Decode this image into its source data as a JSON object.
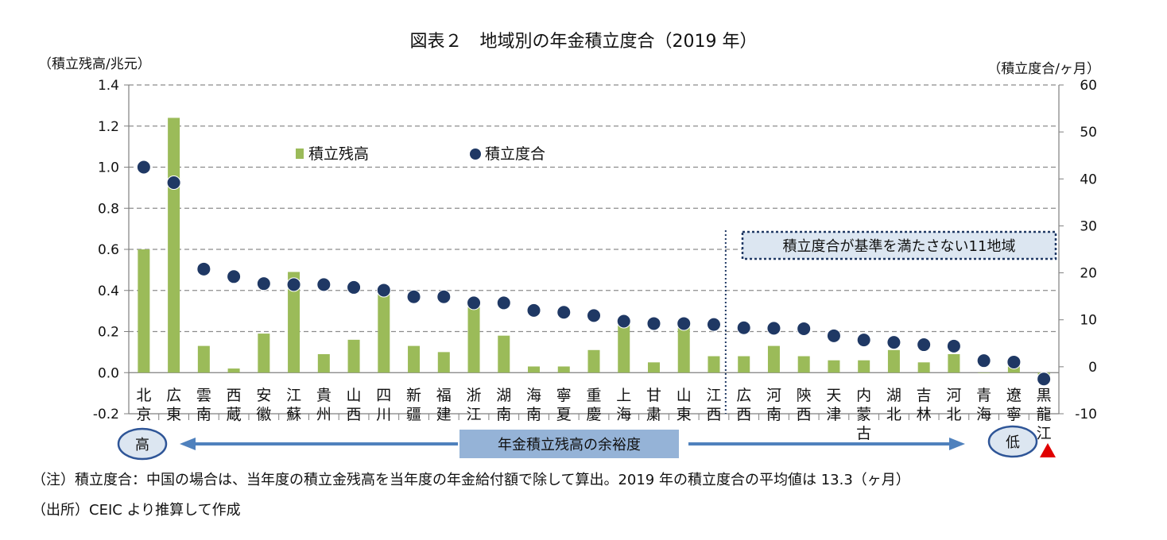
{
  "chart_data": {
    "type": "bar+scatter",
    "title": "図表２　地域別の年金積立度合（2019 年）",
    "ylabel_left": "（積立残高/兆元）",
    "ylabel_right": "（積立度合/ヶ月）",
    "ylim_left": [
      -0.2,
      1.4
    ],
    "yticks_left": [
      "1.4",
      "1.2",
      "1.0",
      "0.8",
      "0.6",
      "0.4",
      "0.2",
      "0.0",
      "-0.2"
    ],
    "yticks_left_values": [
      1.4,
      1.2,
      1.0,
      0.8,
      0.6,
      0.4,
      0.2,
      0.0,
      -0.2
    ],
    "ylim_right": [
      -10,
      60
    ],
    "yticks_right": [
      "60",
      "50",
      "40",
      "30",
      "20",
      "10",
      "0",
      "-10"
    ],
    "yticks_right_values": [
      60,
      50,
      40,
      30,
      20,
      10,
      0,
      -10
    ],
    "grid": "horizontal dashed",
    "legend": {
      "bar": "積立残高",
      "dot": "積立度合",
      "position": "top-left inside"
    },
    "categories": [
      [
        "北",
        "京"
      ],
      [
        "広",
        "東"
      ],
      [
        "雲",
        "南"
      ],
      [
        "西",
        "蔵"
      ],
      [
        "安",
        "徽"
      ],
      [
        "江",
        "蘇"
      ],
      [
        "貴",
        "州"
      ],
      [
        "山",
        "西"
      ],
      [
        "四",
        "川"
      ],
      [
        "新",
        "疆"
      ],
      [
        "福",
        "建"
      ],
      [
        "浙",
        "江"
      ],
      [
        "湖",
        "南"
      ],
      [
        "海",
        "南"
      ],
      [
        "寧",
        "夏"
      ],
      [
        "重",
        "慶"
      ],
      [
        "上",
        "海"
      ],
      [
        "甘",
        "粛"
      ],
      [
        "山",
        "東"
      ],
      [
        "江",
        "西"
      ],
      [
        "広",
        "西"
      ],
      [
        "河",
        "南"
      ],
      [
        "陝",
        "西"
      ],
      [
        "天",
        "津"
      ],
      [
        "内",
        "蒙",
        "古"
      ],
      [
        "湖",
        "北"
      ],
      [
        "吉",
        "林"
      ],
      [
        "河",
        "北"
      ],
      [
        "青",
        "海"
      ],
      [
        "遼",
        "寧"
      ],
      [
        "黒",
        "龍",
        "江"
      ]
    ],
    "series": [
      {
        "name": "積立残高",
        "axis": "left",
        "color": "#9bbb59",
        "values": [
          0.6,
          1.24,
          0.13,
          0.02,
          0.19,
          0.49,
          0.09,
          0.16,
          0.4,
          0.13,
          0.1,
          0.33,
          0.18,
          0.03,
          0.03,
          0.11,
          0.24,
          0.05,
          0.23,
          0.08,
          0.08,
          0.13,
          0.08,
          0.06,
          0.06,
          0.11,
          0.05,
          0.09,
          0.0,
          0.03,
          -0.03
        ]
      },
      {
        "name": "積立度合",
        "axis": "right",
        "color": "#1f3864",
        "values": [
          42.5,
          39.2,
          20.8,
          19.2,
          17.7,
          17.5,
          17.5,
          16.9,
          16.3,
          14.9,
          14.9,
          13.6,
          13.6,
          12.0,
          11.6,
          10.9,
          9.7,
          9.2,
          9.2,
          9.0,
          8.3,
          8.2,
          8.1,
          6.6,
          5.7,
          5.2,
          4.7,
          4.4,
          1.3,
          1.0,
          -2.6
        ]
      }
    ],
    "annotation_box": "積立度合が基準を満たさない11地域",
    "arrow_label": "年金積立残高の余裕度",
    "high_label": "高",
    "low_label": "低"
  },
  "notes": {
    "note1": "（注）積立度合：中国の場合は、当年度の積立金残高を当年度の年金給付額で除して算出。2019 年の積立度合の平均値は 13.3（ヶ月）",
    "note2": "（出所）CEIC より推算して作成"
  }
}
